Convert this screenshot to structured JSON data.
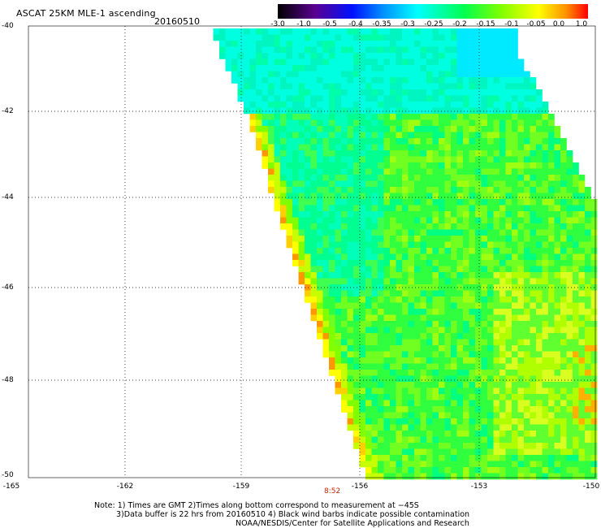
{
  "header": {
    "title": "ASCAT 25KM MLE-1 ascending",
    "date": "20160510"
  },
  "colorbar": {
    "labels": [
      "-3.0",
      "-1.0",
      "-0.5",
      "-0.4",
      "-0.35",
      "-0.3",
      "-0.25",
      "-0.2",
      "-0.15",
      "-0.1",
      "-0.05",
      "0.0",
      "1.0"
    ]
  },
  "axes": {
    "lat_labels": [
      "-40",
      "-42",
      "-44",
      "-46",
      "-48",
      "-50"
    ],
    "lon_labels": [
      "-165",
      "-162",
      "-159",
      "-156",
      "-153",
      "-150"
    ]
  },
  "orbit_time": "8:52",
  "notes": {
    "line1": "Note: 1) Times are GMT 2)Times along bottom correspond to measurement at −45S",
    "line2": "3)Data buffer is 22 hrs from 20160510 4) Black wind barbs indicate possible contamination",
    "line3": "NOAA/NESDIS/Center for Satellite Applications and Research"
  },
  "colors": {
    "colorbar_stops": [
      "#000000",
      "#6a00b0",
      "#0010ff",
      "#0090ff",
      "#00ffff",
      "#00ff40",
      "#a0ff00",
      "#ffff00",
      "#ff9000",
      "#ff0000"
    ]
  }
}
